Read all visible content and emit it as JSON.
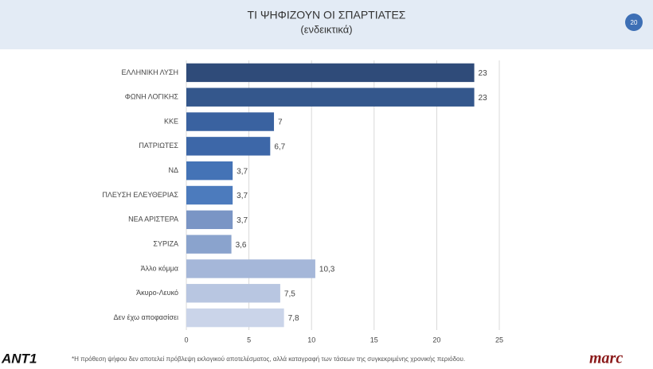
{
  "chart_data": {
    "type": "bar",
    "orientation": "horizontal",
    "title": "ΤΙ ΨΗΦΙΖΟΥΝ ΟΙ ΣΠΑΡΤΙΑΤΕΣ",
    "subtitle": "(ενδεικτικά)",
    "categories": [
      "ΕΛΛΗΝΙΚΗ ΛΥΣΗ",
      "ΦΩΝΗ ΛΟΓΙΚΗΣ",
      "ΚΚΕ",
      "ΠΑΤΡΙΩΤΕΣ",
      "ΝΔ",
      "ΠΛΕΥΣΗ ΕΛΕΥΘΕΡΙΑΣ",
      "ΝΕΑ ΑΡΙΣΤΕΡΑ",
      "ΣΥΡΙΖΑ",
      "Άλλο κόμμα",
      "Άκυρο-Λευκό",
      "Δεν έχω αποφασίσει"
    ],
    "values": [
      23,
      23,
      7,
      6.7,
      3.7,
      3.7,
      3.7,
      3.6,
      10.3,
      7.5,
      7.8
    ],
    "value_labels": [
      "23",
      "23",
      "7",
      "6,7",
      "3,7",
      "3,7",
      "3,7",
      "3,6",
      "10,3",
      "7,5",
      "7,8"
    ],
    "colors": [
      "#2f4b79",
      "#34578c",
      "#3a62a0",
      "#3d67a8",
      "#4473b6",
      "#4c7bbd",
      "#7a95c5",
      "#8aa3cd",
      "#a5b7d9",
      "#b8c6e1",
      "#cad4e9"
    ],
    "xlim": [
      0,
      25
    ],
    "xticks": [
      0,
      5,
      10,
      15,
      20,
      25
    ],
    "grid": true
  },
  "page_number": 20,
  "footnote": "*Η πρόθεση ψήφου δεν αποτελεί πρόβλεψη εκλογικού αποτελέσματος, αλλά καταγραφή των τάσεων της συγκεκριμένης χρονικής περιόδου.",
  "logos": [
    "ANT1",
    "marc"
  ]
}
